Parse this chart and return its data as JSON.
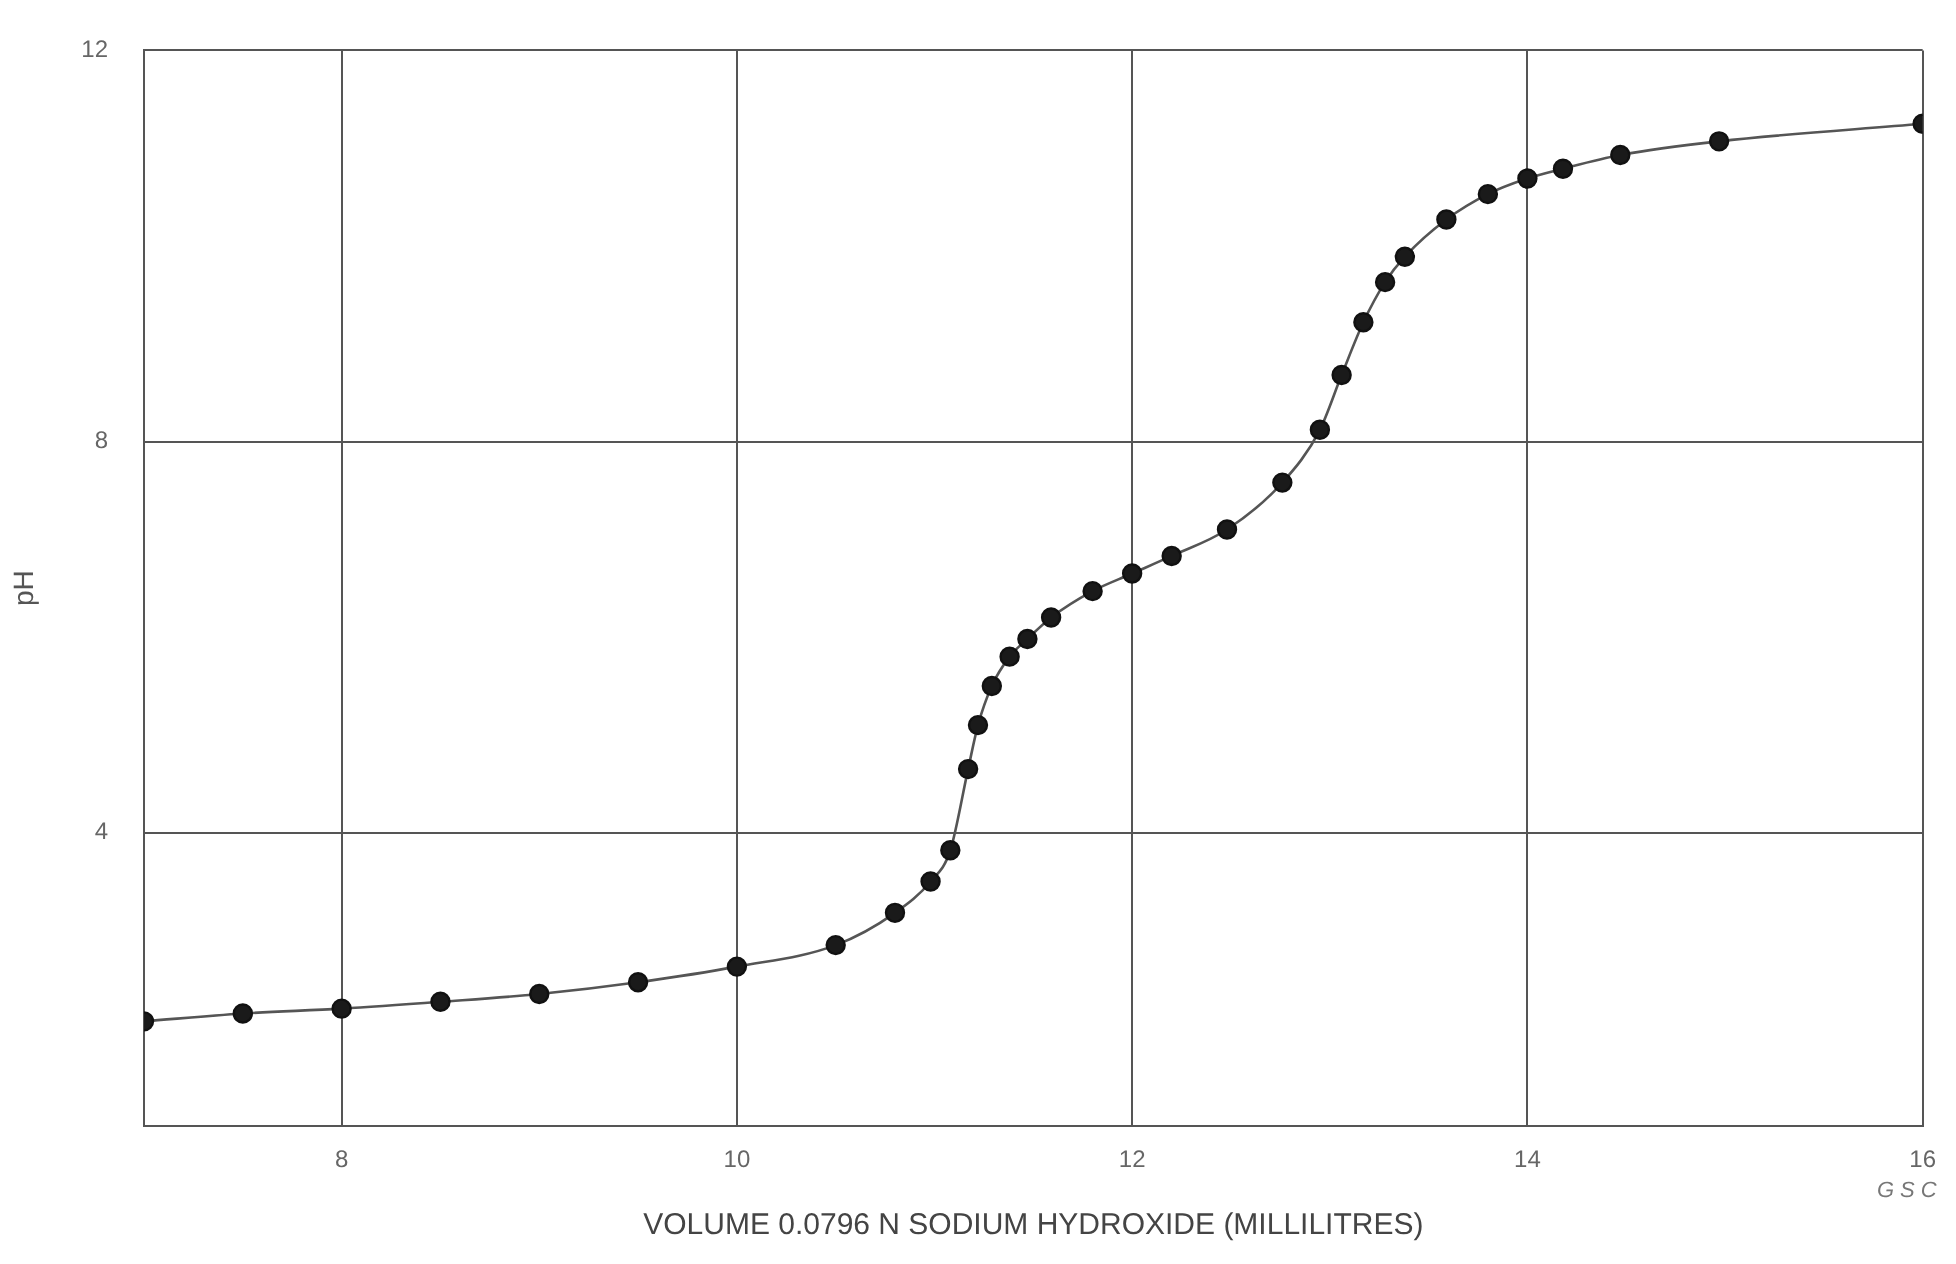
{
  "chart_data": {
    "type": "line",
    "xlabel": "VOLUME 0.0796 N SODIUM HYDROXIDE (MILLILITRES)",
    "ylabel": "pH",
    "x": [
      7,
      7.5,
      8,
      8.5,
      9,
      9.5,
      10,
      10.5,
      10.8,
      10.98,
      11.08,
      11.17,
      11.22,
      11.29,
      11.38,
      11.47,
      11.59,
      11.8,
      12,
      12.2,
      12.48,
      12.76,
      12.95,
      13.06,
      13.17,
      13.28,
      13.38,
      13.59,
      13.8,
      14,
      14.18,
      14.47,
      14.97,
      16
    ],
    "series": [
      {
        "color": "#555555",
        "values": [
          2.07,
          2.15,
          2.2,
          2.27,
          2.35,
          2.47,
          2.63,
          2.85,
          3.18,
          3.5,
          3.82,
          4.65,
          5.1,
          5.5,
          5.8,
          5.98,
          6.2,
          6.47,
          6.65,
          6.83,
          7.1,
          7.58,
          8.12,
          8.68,
          9.22,
          9.63,
          9.89,
          10.27,
          10.53,
          10.69,
          10.79,
          10.93,
          11.07,
          11.25
        ]
      }
    ],
    "xlim": [
      7,
      16
    ],
    "xticks": [
      8,
      10,
      12,
      14,
      16
    ],
    "ylim": [
      1,
      12
    ],
    "yticks": [
      4,
      8,
      12
    ],
    "grid": true,
    "legend": false,
    "marker": "circle",
    "line_style": "solid",
    "annotations": [
      "GSC"
    ]
  }
}
